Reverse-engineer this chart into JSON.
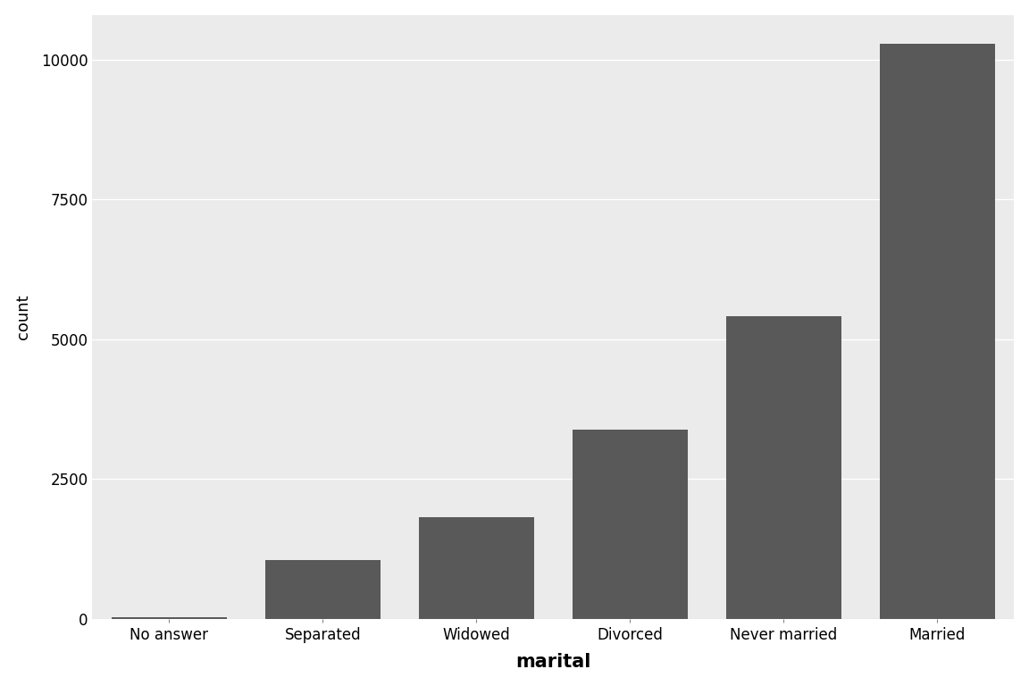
{
  "categories": [
    "No answer",
    "Separated",
    "Widowed",
    "Divorced",
    "Never married",
    "Married"
  ],
  "values": [
    17,
    1047,
    1807,
    3383,
    5416,
    10285
  ],
  "bar_color": "#595959",
  "fig_background": "#FFFFFF",
  "panel_background": "#EBEBEB",
  "grid_color": "#FFFFFF",
  "title": "",
  "xlabel": "marital",
  "ylabel": "count",
  "ylim": [
    0,
    10800
  ],
  "yticks": [
    0,
    2500,
    5000,
    7500,
    10000
  ],
  "xlabel_fontsize": 15,
  "ylabel_fontsize": 13,
  "tick_fontsize": 12,
  "xlabel_fontweight": "bold",
  "bar_width": 0.75
}
